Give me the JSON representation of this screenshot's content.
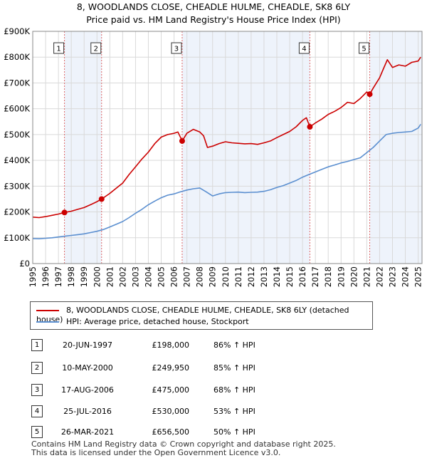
{
  "title_line1": "8, WOODLANDS CLOSE, CHEADLE HULME, CHEADLE, SK8 6LY",
  "title_line2": "Price paid vs. HM Land Registry's House Price Index (HPI)",
  "legend": {
    "property": "8, WOODLANDS CLOSE, CHEADLE HULME, CHEADLE, SK8 6LY (detached house)",
    "hpi": "HPI: Average price, detached house, Stockport"
  },
  "colors": {
    "property": "#cc0000",
    "hpi": "#5b8fd0",
    "shade": "#eef3fb",
    "marker_line": "#dd6666"
  },
  "sales": [
    {
      "num": "1",
      "date": "20-JUN-1997",
      "price": "£198,000",
      "hpi": "86% ↑ HPI"
    },
    {
      "num": "2",
      "date": "10-MAY-2000",
      "price": "£249,950",
      "hpi": "85% ↑ HPI"
    },
    {
      "num": "3",
      "date": "17-AUG-2006",
      "price": "£475,000",
      "hpi": "68% ↑ HPI"
    },
    {
      "num": "4",
      "date": "25-JUL-2016",
      "price": "£530,000",
      "hpi": "53% ↑ HPI"
    },
    {
      "num": "5",
      "date": "26-MAR-2021",
      "price": "£656,500",
      "hpi": "50% ↑ HPI"
    }
  ],
  "footer_line1": "Contains HM Land Registry data © Crown copyright and database right 2025.",
  "footer_line2": "This data is licensed under the Open Government Licence v3.0.",
  "chart_data": {
    "type": "line",
    "title": "8, WOODLANDS CLOSE, CHEADLE HULME, CHEADLE, SK8 6LY — Price paid vs. HPI",
    "xlim": [
      1995,
      2025.3
    ],
    "ylim": [
      0,
      900000
    ],
    "x_ticks": [
      1995,
      1996,
      1997,
      1998,
      1999,
      2000,
      2001,
      2002,
      2003,
      2004,
      2005,
      2006,
      2007,
      2008,
      2009,
      2010,
      2011,
      2012,
      2013,
      2014,
      2015,
      2016,
      2017,
      2018,
      2019,
      2020,
      2021,
      2022,
      2023,
      2024,
      2025
    ],
    "y_ticks": [
      0,
      100000,
      200000,
      300000,
      400000,
      500000,
      600000,
      700000,
      800000,
      900000
    ],
    "y_tick_labels": [
      "£0",
      "£100K",
      "£200K",
      "£300K",
      "£400K",
      "£500K",
      "£600K",
      "£700K",
      "£800K",
      "£900K"
    ],
    "shaded_spans": [
      [
        1997.47,
        2000.36
      ],
      [
        2006.63,
        2016.57
      ],
      [
        2021.23,
        2025.3
      ]
    ],
    "sale_points": [
      {
        "label": "1",
        "x": 1997.47,
        "y": 198000
      },
      {
        "label": "2",
        "x": 2000.36,
        "y": 249950
      },
      {
        "label": "3",
        "x": 2006.63,
        "y": 475000
      },
      {
        "label": "4",
        "x": 2016.57,
        "y": 530000
      },
      {
        "label": "5",
        "x": 2021.23,
        "y": 656500
      }
    ],
    "series": [
      {
        "name": "8, WOODLANDS CLOSE, CHEADLE HULME, CHEADLE, SK8 6LY (detached house)",
        "x": [
          1995,
          1995.5,
          1996,
          1996.5,
          1997,
          1997.47,
          1998,
          1998.5,
          1999,
          1999.5,
          2000,
          2000.36,
          2001,
          2001.5,
          2002,
          2002.5,
          2003,
          2003.5,
          2004,
          2004.5,
          2005,
          2005.5,
          2006,
          2006.3,
          2006.63,
          2007,
          2007.5,
          2008,
          2008.3,
          2008.6,
          2009,
          2009.5,
          2010,
          2010.5,
          2011,
          2011.5,
          2012,
          2012.5,
          2013,
          2013.5,
          2014,
          2014.5,
          2015,
          2015.5,
          2016,
          2016.3,
          2016.57,
          2017,
          2017.5,
          2018,
          2018.5,
          2019,
          2019.5,
          2020,
          2020.5,
          2021,
          2021.23,
          2021.5,
          2022,
          2022.3,
          2022.6,
          2023,
          2023.5,
          2024,
          2024.5,
          2025,
          2025.2
        ],
        "y": [
          180000,
          178000,
          182000,
          187000,
          192000,
          198000,
          203000,
          210000,
          217000,
          228000,
          240000,
          249950,
          272000,
          292000,
          312000,
          345000,
          375000,
          405000,
          432000,
          465000,
          490000,
          500000,
          505000,
          510000,
          475000,
          505000,
          520000,
          510000,
          495000,
          450000,
          455000,
          465000,
          472000,
          468000,
          466000,
          464000,
          465000,
          462000,
          468000,
          475000,
          488000,
          500000,
          512000,
          530000,
          555000,
          565000,
          530000,
          545000,
          560000,
          578000,
          590000,
          605000,
          625000,
          620000,
          640000,
          665000,
          656500,
          680000,
          720000,
          755000,
          790000,
          760000,
          770000,
          765000,
          780000,
          785000,
          800000
        ]
      },
      {
        "name": "HPI: Average price, detached house, Stockport",
        "x": [
          1995,
          1995.5,
          1996,
          1996.5,
          1997,
          1997.5,
          1998,
          1998.5,
          1999,
          1999.5,
          2000,
          2000.5,
          2001,
          2001.5,
          2002,
          2002.5,
          2003,
          2003.5,
          2004,
          2004.5,
          2005,
          2005.5,
          2006,
          2006.5,
          2007,
          2007.5,
          2008,
          2008.5,
          2009,
          2009.5,
          2010,
          2010.5,
          2011,
          2011.5,
          2012,
          2012.5,
          2013,
          2013.5,
          2014,
          2014.5,
          2015,
          2015.5,
          2016,
          2016.5,
          2017,
          2017.5,
          2018,
          2018.5,
          2019,
          2019.5,
          2020,
          2020.5,
          2021,
          2021.5,
          2022,
          2022.5,
          2023,
          2023.5,
          2024,
          2024.5,
          2025,
          2025.2
        ],
        "y": [
          97000,
          96000,
          98000,
          100000,
          103000,
          106000,
          109000,
          112000,
          115000,
          120000,
          125000,
          132000,
          142000,
          152000,
          163000,
          178000,
          195000,
          210000,
          228000,
          242000,
          255000,
          265000,
          270000,
          278000,
          285000,
          290000,
          293000,
          278000,
          262000,
          270000,
          275000,
          276000,
          277000,
          275000,
          276000,
          277000,
          280000,
          286000,
          295000,
          302000,
          312000,
          322000,
          335000,
          345000,
          355000,
          365000,
          375000,
          382000,
          390000,
          396000,
          403000,
          410000,
          430000,
          450000,
          475000,
          500000,
          505000,
          508000,
          510000,
          512000,
          525000,
          540000
        ]
      }
    ]
  }
}
